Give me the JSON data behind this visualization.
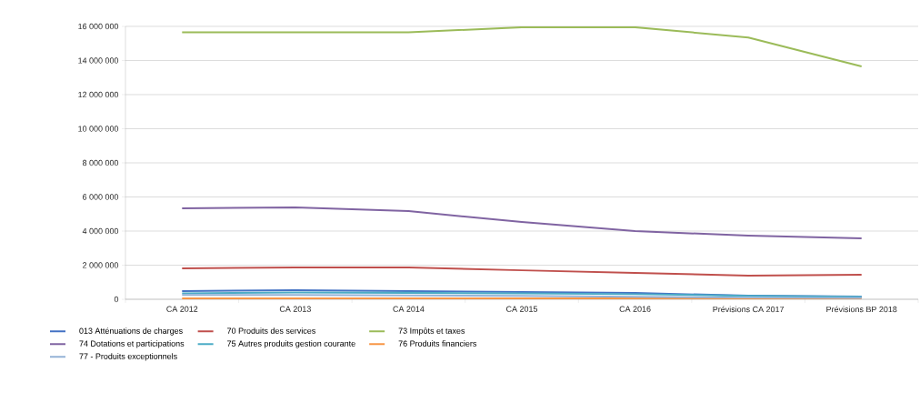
{
  "chart_data": {
    "type": "line",
    "categories": [
      "CA 2012",
      "CA 2013",
      "CA 2014",
      "CA 2015",
      "CA 2016",
      "Prévisions CA 2017",
      "Prévisions BP 2018"
    ],
    "series": [
      {
        "name": "013   Atténuations de charges",
        "color": "#4472c4",
        "values": [
          480000,
          530000,
          480000,
          430000,
          370000,
          210000,
          160000
        ]
      },
      {
        "name": "70   Produits des services",
        "color": "#c0504d",
        "values": [
          1810000,
          1870000,
          1870000,
          1700000,
          1550000,
          1390000,
          1440000
        ]
      },
      {
        "name": "73   Impôts et taxes",
        "color": "#9bbb59",
        "values": [
          15650000,
          15650000,
          15650000,
          15950000,
          15950000,
          15350000,
          13650000
        ]
      },
      {
        "name": "74   Dotations et participations",
        "color": "#8064a2",
        "values": [
          5330000,
          5390000,
          5170000,
          4530000,
          4000000,
          3730000,
          3570000
        ]
      },
      {
        "name": "75   Autres produits gestion courante",
        "color": "#4bacc6",
        "values": [
          350000,
          400000,
          380000,
          350000,
          300000,
          200000,
          150000
        ]
      },
      {
        "name": "76   Produits financiers",
        "color": "#f79646",
        "values": [
          50000,
          50000,
          50000,
          50000,
          50000,
          50000,
          50000
        ]
      },
      {
        "name": "77 - Produits exceptionnels",
        "color": "#95b3d7",
        "values": [
          250000,
          250000,
          220000,
          200000,
          150000,
          100000,
          80000
        ]
      }
    ],
    "ylim": [
      0,
      16000000
    ],
    "yticks": [
      0,
      {
        "value": 2000000,
        "label": "2 000 000"
      },
      {
        "value": 4000000,
        "label": "4 000 000"
      },
      {
        "value": 6000000,
        "label": "6 000 000"
      },
      {
        "value": 8000000,
        "label": "8 000 000"
      },
      {
        "value": 10000000,
        "label": "10 000 000"
      },
      {
        "value": 12000000,
        "label": "12 000 000"
      },
      {
        "value": 14000000,
        "label": "14 000 000"
      },
      {
        "value": 16000000,
        "label": "16 000 000"
      }
    ],
    "grid": "y",
    "legend": "bottom",
    "marker": "none",
    "line_style": "solid"
  }
}
